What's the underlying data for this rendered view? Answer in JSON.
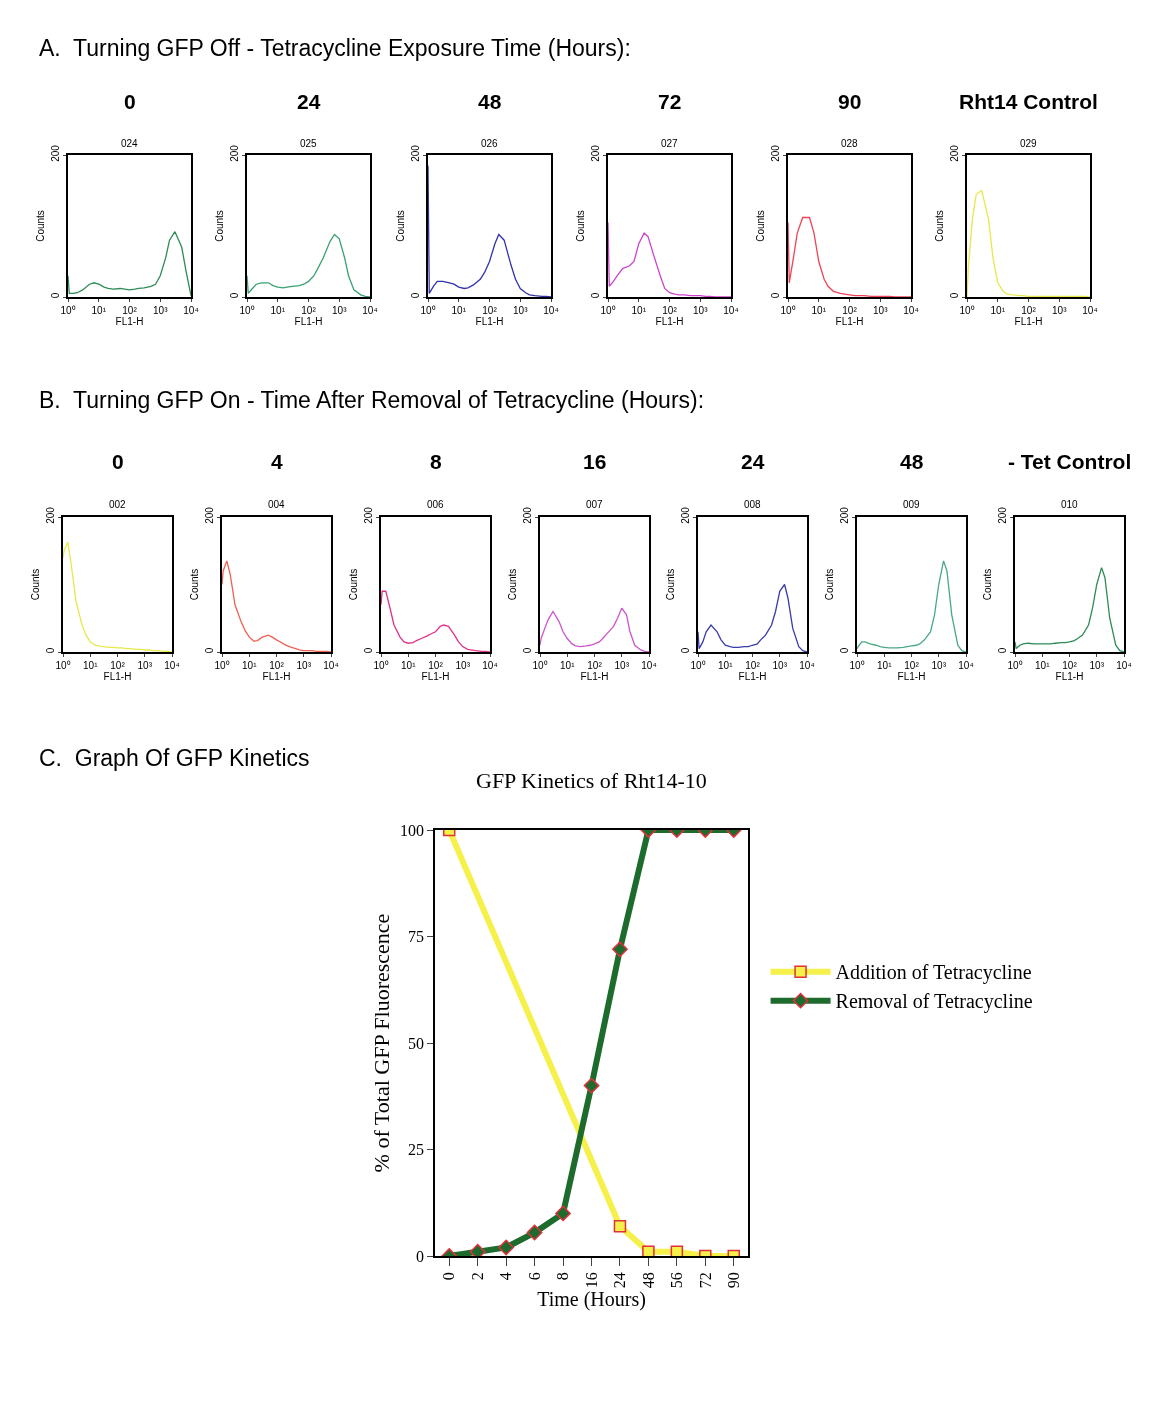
{
  "chart_data": [
    {
      "type": "line",
      "title": "0",
      "subtitle": "024",
      "xlabel": "FL1-H",
      "ylabel": "Counts",
      "log": "x",
      "annotations": [
        "A.  Turning GFP Off - Tetracycline Exposure Time (Hours):"
      ],
      "xlim": [
        1,
        10000
      ],
      "ylim": [
        0,
        200
      ],
      "xticks": [
        {
          "value": 1,
          "label": "10⁰"
        },
        {
          "value": 10,
          "label": "10¹"
        },
        {
          "value": 100,
          "label": "10²"
        },
        {
          "value": 1000,
          "label": "10³"
        },
        {
          "value": 10000,
          "label": "10⁴"
        }
      ],
      "yticks": [
        0,
        200
      ],
      "x": [
        1,
        1.1,
        1.5,
        2,
        3,
        5,
        7,
        10,
        15,
        20,
        30,
        50,
        70,
        100,
        150,
        200,
        300,
        500,
        700,
        1000,
        1500,
        2000,
        3000,
        5000,
        7000,
        10000
      ],
      "series": [
        {
          "color": "#2e8b57",
          "values": [
            30,
            5,
            5,
            6,
            10,
            18,
            20,
            18,
            14,
            12,
            11,
            12,
            11,
            10,
            11,
            12,
            13,
            15,
            18,
            30,
            55,
            80,
            92,
            70,
            35,
            2
          ]
        }
      ]
    },
    {
      "type": "line",
      "title": "24",
      "subtitle": "025",
      "xlabel": "FL1-H",
      "ylabel": "Counts",
      "log": "x",
      "xlim": [
        1,
        10000
      ],
      "ylim": [
        0,
        200
      ],
      "xticks": [
        {
          "value": 1,
          "label": "10⁰"
        },
        {
          "value": 10,
          "label": "10¹"
        },
        {
          "value": 100,
          "label": "10²"
        },
        {
          "value": 1000,
          "label": "10³"
        },
        {
          "value": 10000,
          "label": "10⁴"
        }
      ],
      "yticks": [
        0,
        200
      ],
      "x": [
        1,
        1.1,
        1.5,
        2,
        3,
        5,
        7,
        10,
        15,
        20,
        30,
        50,
        70,
        100,
        150,
        200,
        300,
        500,
        700,
        1000,
        1500,
        2000,
        3000,
        5000,
        7000,
        10000
      ],
      "series": [
        {
          "color": "#3aa070",
          "values": [
            30,
            5,
            12,
            18,
            20,
            20,
            16,
            14,
            13,
            14,
            15,
            16,
            18,
            22,
            30,
            40,
            55,
            78,
            88,
            82,
            55,
            30,
            10,
            3,
            1,
            0
          ]
        }
      ]
    },
    {
      "type": "line",
      "title": "48",
      "subtitle": "026",
      "xlabel": "FL1-H",
      "ylabel": "Counts",
      "log": "x",
      "xlim": [
        1,
        10000
      ],
      "ylim": [
        0,
        200
      ],
      "xticks": [
        {
          "value": 1,
          "label": "10⁰"
        },
        {
          "value": 10,
          "label": "10¹"
        },
        {
          "value": 100,
          "label": "10²"
        },
        {
          "value": 1000,
          "label": "10³"
        },
        {
          "value": 10000,
          "label": "10⁴"
        }
      ],
      "yticks": [
        0,
        200
      ],
      "x": [
        1,
        1.1,
        1.5,
        2,
        3,
        5,
        7,
        10,
        15,
        20,
        30,
        50,
        70,
        100,
        150,
        200,
        300,
        500,
        700,
        1000,
        1500,
        2000,
        3000,
        5000,
        7000,
        10000
      ],
      "series": [
        {
          "color": "#3333aa",
          "values": [
            185,
            5,
            15,
            22,
            22,
            20,
            18,
            14,
            12,
            13,
            17,
            25,
            35,
            50,
            75,
            88,
            80,
            45,
            25,
            12,
            6,
            3,
            2,
            1,
            1,
            0
          ]
        }
      ]
    },
    {
      "type": "line",
      "title": "72",
      "subtitle": "027",
      "xlabel": "FL1-H",
      "ylabel": "Counts",
      "log": "x",
      "xlim": [
        1,
        10000
      ],
      "ylim": [
        0,
        200
      ],
      "xticks": [
        {
          "value": 1,
          "label": "10⁰"
        },
        {
          "value": 10,
          "label": "10¹"
        },
        {
          "value": 100,
          "label": "10²"
        },
        {
          "value": 1000,
          "label": "10³"
        },
        {
          "value": 10000,
          "label": "10⁴"
        }
      ],
      "yticks": [
        0,
        200
      ],
      "x": [
        1,
        1.1,
        1.5,
        2,
        3,
        5,
        7,
        10,
        15,
        20,
        30,
        50,
        70,
        100,
        150,
        200,
        300,
        500,
        700,
        1000,
        1500,
        2000,
        3000,
        5000,
        7000,
        10000
      ],
      "series": [
        {
          "color": "#cc44cc",
          "values": [
            105,
            15,
            22,
            30,
            40,
            44,
            50,
            75,
            90,
            85,
            60,
            30,
            12,
            6,
            4,
            3,
            3,
            2,
            2,
            2,
            1,
            1,
            0,
            0,
            0,
            0
          ]
        }
      ]
    },
    {
      "type": "line",
      "title": "90",
      "subtitle": "028",
      "xlabel": "FL1-H",
      "ylabel": "Counts",
      "log": "x",
      "xlim": [
        1,
        10000
      ],
      "ylim": [
        0,
        200
      ],
      "xticks": [
        {
          "value": 1,
          "label": "10⁰"
        },
        {
          "value": 10,
          "label": "10¹"
        },
        {
          "value": 100,
          "label": "10²"
        },
        {
          "value": 1000,
          "label": "10³"
        },
        {
          "value": 10000,
          "label": "10⁴"
        }
      ],
      "yticks": [
        0,
        200
      ],
      "x": [
        1,
        1.1,
        1.5,
        2,
        3,
        5,
        7,
        10,
        15,
        20,
        30,
        50,
        70,
        100,
        150,
        200,
        300,
        500,
        700,
        1000,
        1500,
        2000,
        3000,
        5000,
        7000,
        10000
      ],
      "series": [
        {
          "color": "#ee4455",
          "values": [
            105,
            20,
            55,
            90,
            112,
            112,
            90,
            50,
            25,
            15,
            8,
            5,
            4,
            3,
            2,
            2,
            2,
            1,
            1,
            1,
            1,
            1,
            0,
            0,
            0,
            0
          ]
        }
      ]
    },
    {
      "type": "line",
      "title": "Rht14 Control",
      "subtitle": "029",
      "xlabel": "FL1-H",
      "ylabel": "Counts",
      "log": "x",
      "xlim": [
        1,
        10000
      ],
      "ylim": [
        0,
        200
      ],
      "xticks": [
        {
          "value": 1,
          "label": "10⁰"
        },
        {
          "value": 10,
          "label": "10¹"
        },
        {
          "value": 100,
          "label": "10²"
        },
        {
          "value": 1000,
          "label": "10³"
        },
        {
          "value": 10000,
          "label": "10⁴"
        }
      ],
      "yticks": [
        0,
        200
      ],
      "x": [
        1,
        1.1,
        1.5,
        2,
        3,
        5,
        7,
        10,
        15,
        20,
        30,
        50,
        70,
        100,
        150,
        200,
        300,
        500,
        700,
        1000,
        1500,
        2000,
        3000,
        5000,
        7000,
        10000
      ],
      "series": [
        {
          "color": "#e8e84a",
          "values": [
            0,
            40,
            110,
            145,
            150,
            110,
            55,
            20,
            8,
            4,
            3,
            2,
            2,
            1,
            1,
            1,
            1,
            1,
            1,
            1,
            1,
            1,
            1,
            1,
            1,
            0
          ]
        }
      ]
    },
    {
      "type": "line",
      "title": "0",
      "subtitle": "002",
      "xlabel": "FL1-H",
      "ylabel": "Counts",
      "log": "x",
      "annotations": [
        "B.  Turning GFP On - Time After Removal of Tetracycline (Hours):"
      ],
      "xlim": [
        1,
        10000
      ],
      "ylim": [
        0,
        200
      ],
      "xticks": [
        {
          "value": 1,
          "label": "10⁰"
        },
        {
          "value": 10,
          "label": "10¹"
        },
        {
          "value": 100,
          "label": "10²"
        },
        {
          "value": 1000,
          "label": "10³"
        },
        {
          "value": 10000,
          "label": "10⁴"
        }
      ],
      "yticks": [
        0,
        200
      ],
      "x": [
        1,
        1.1,
        1.5,
        2,
        3,
        5,
        7,
        10,
        15,
        20,
        30,
        50,
        70,
        100,
        150,
        200,
        300,
        500,
        700,
        1000,
        1500,
        2000,
        3000,
        5000,
        7000,
        10000
      ],
      "series": [
        {
          "color": "#e8e84a",
          "values": [
            140,
            150,
            163,
            130,
            75,
            40,
            25,
            15,
            10,
            9,
            8,
            7,
            7,
            6,
            6,
            5,
            5,
            4,
            4,
            3,
            3,
            2,
            2,
            1,
            1,
            0
          ]
        }
      ]
    },
    {
      "type": "line",
      "title": "4",
      "subtitle": "004",
      "xlabel": "FL1-H",
      "ylabel": "Counts",
      "log": "x",
      "xlim": [
        1,
        10000
      ],
      "ylim": [
        0,
        200
      ],
      "xticks": [
        {
          "value": 1,
          "label": "10⁰"
        },
        {
          "value": 10,
          "label": "10¹"
        },
        {
          "value": 100,
          "label": "10²"
        },
        {
          "value": 1000,
          "label": "10³"
        },
        {
          "value": 10000,
          "label": "10⁴"
        }
      ],
      "yticks": [
        0,
        200
      ],
      "x": [
        1,
        1.1,
        1.5,
        2,
        3,
        5,
        7,
        10,
        15,
        20,
        30,
        50,
        70,
        100,
        150,
        200,
        300,
        500,
        700,
        1000,
        1500,
        2000,
        3000,
        5000,
        7000,
        10000
      ],
      "series": [
        {
          "color": "#f06050",
          "values": [
            100,
            120,
            135,
            115,
            70,
            45,
            32,
            22,
            16,
            17,
            22,
            25,
            22,
            18,
            14,
            11,
            8,
            5,
            3,
            2,
            2,
            2,
            1,
            1,
            1,
            0
          ]
        }
      ]
    },
    {
      "type": "line",
      "title": "8",
      "subtitle": "006",
      "xlabel": "FL1-H",
      "ylabel": "Counts",
      "log": "x",
      "xlim": [
        1,
        10000
      ],
      "ylim": [
        0,
        200
      ],
      "xticks": [
        {
          "value": 1,
          "label": "10⁰"
        },
        {
          "value": 10,
          "label": "10¹"
        },
        {
          "value": 100,
          "label": "10²"
        },
        {
          "value": 1000,
          "label": "10³"
        },
        {
          "value": 10000,
          "label": "10⁴"
        }
      ],
      "yticks": [
        0,
        200
      ],
      "x": [
        1,
        1.1,
        1.5,
        2,
        3,
        5,
        7,
        10,
        15,
        20,
        30,
        50,
        70,
        100,
        150,
        200,
        300,
        500,
        700,
        1000,
        1500,
        2000,
        3000,
        5000,
        7000,
        10000
      ],
      "series": [
        {
          "color": "#e0308a",
          "values": [
            70,
            90,
            90,
            70,
            40,
            22,
            15,
            13,
            14,
            17,
            20,
            24,
            27,
            30,
            38,
            40,
            38,
            25,
            15,
            8,
            4,
            3,
            2,
            1,
            1,
            0
          ]
        }
      ]
    },
    {
      "type": "line",
      "title": "16",
      "subtitle": "007",
      "xlabel": "FL1-H",
      "ylabel": "Counts",
      "log": "x",
      "xlim": [
        1,
        10000
      ],
      "ylim": [
        0,
        200
      ],
      "xticks": [
        {
          "value": 1,
          "label": "10⁰"
        },
        {
          "value": 10,
          "label": "10¹"
        },
        {
          "value": 100,
          "label": "10²"
        },
        {
          "value": 1000,
          "label": "10³"
        },
        {
          "value": 10000,
          "label": "10⁴"
        }
      ],
      "yticks": [
        0,
        200
      ],
      "x": [
        1,
        1.1,
        1.5,
        2,
        3,
        5,
        7,
        10,
        15,
        20,
        30,
        50,
        70,
        100,
        150,
        200,
        300,
        500,
        700,
        1000,
        1500,
        2000,
        3000,
        5000,
        7000,
        10000
      ],
      "series": [
        {
          "color": "#cc55cc",
          "values": [
            10,
            20,
            35,
            48,
            60,
            45,
            30,
            20,
            12,
            9,
            8,
            9,
            10,
            12,
            15,
            20,
            28,
            38,
            50,
            65,
            55,
            30,
            10,
            3,
            1,
            0
          ]
        }
      ]
    },
    {
      "type": "line",
      "title": "24",
      "subtitle": "008",
      "xlabel": "FL1-H",
      "ylabel": "Counts",
      "log": "x",
      "xlim": [
        1,
        10000
      ],
      "ylim": [
        0,
        200
      ],
      "xticks": [
        {
          "value": 1,
          "label": "10⁰"
        },
        {
          "value": 10,
          "label": "10¹"
        },
        {
          "value": 100,
          "label": "10²"
        },
        {
          "value": 1000,
          "label": "10³"
        },
        {
          "value": 10000,
          "label": "10⁴"
        }
      ],
      "yticks": [
        0,
        200
      ],
      "x": [
        1,
        1.1,
        1.5,
        2,
        3,
        5,
        7,
        10,
        15,
        20,
        30,
        50,
        70,
        100,
        150,
        200,
        300,
        500,
        700,
        1000,
        1500,
        2000,
        3000,
        5000,
        7000,
        10000
      ],
      "series": [
        {
          "color": "#3a3aaa",
          "values": [
            30,
            5,
            15,
            30,
            40,
            30,
            18,
            10,
            8,
            7,
            7,
            8,
            8,
            10,
            12,
            18,
            25,
            40,
            60,
            90,
            100,
            80,
            35,
            8,
            2,
            0
          ]
        }
      ]
    },
    {
      "type": "line",
      "title": "48",
      "subtitle": "009",
      "xlabel": "FL1-H",
      "ylabel": "Counts",
      "log": "x",
      "xlim": [
        1,
        10000
      ],
      "ylim": [
        0,
        200
      ],
      "xticks": [
        {
          "value": 1,
          "label": "10⁰"
        },
        {
          "value": 10,
          "label": "10¹"
        },
        {
          "value": 100,
          "label": "10²"
        },
        {
          "value": 1000,
          "label": "10³"
        },
        {
          "value": 10000,
          "label": "10⁴"
        }
      ],
      "yticks": [
        0,
        200
      ],
      "x": [
        1,
        1.1,
        1.5,
        2,
        3,
        5,
        7,
        10,
        15,
        20,
        30,
        50,
        70,
        100,
        150,
        200,
        300,
        500,
        700,
        1000,
        1500,
        2000,
        3000,
        5000,
        7000,
        10000
      ],
      "series": [
        {
          "color": "#4aa882",
          "values": [
            5,
            8,
            15,
            15,
            12,
            10,
            8,
            7,
            6,
            6,
            6,
            7,
            8,
            9,
            10,
            12,
            18,
            30,
            55,
            100,
            135,
            120,
            55,
            10,
            2,
            0
          ]
        }
      ]
    },
    {
      "type": "line",
      "title": "- Tet Control",
      "subtitle": "010",
      "xlabel": "FL1-H",
      "ylabel": "Counts",
      "log": "x",
      "xlim": [
        1,
        10000
      ],
      "ylim": [
        0,
        200
      ],
      "xticks": [
        {
          "value": 1,
          "label": "10⁰"
        },
        {
          "value": 10,
          "label": "10¹"
        },
        {
          "value": 100,
          "label": "10²"
        },
        {
          "value": 1000,
          "label": "10³"
        },
        {
          "value": 10000,
          "label": "10⁴"
        }
      ],
      "yticks": [
        0,
        200
      ],
      "x": [
        1,
        1.1,
        1.5,
        2,
        3,
        5,
        7,
        10,
        15,
        20,
        30,
        50,
        70,
        100,
        150,
        200,
        300,
        500,
        700,
        1000,
        1500,
        2000,
        3000,
        5000,
        7000,
        10000
      ],
      "series": [
        {
          "color": "#2e8b57",
          "values": [
            15,
            5,
            10,
            12,
            13,
            12,
            12,
            12,
            12,
            12,
            13,
            14,
            14,
            15,
            17,
            20,
            25,
            40,
            65,
            100,
            125,
            110,
            50,
            10,
            2,
            0
          ]
        }
      ]
    },
    {
      "type": "line",
      "title": "GFP Kinetics of Rht14-10",
      "xlabel": "Time (Hours)",
      "ylabel": "% of Total GFP Fluorescence",
      "annotations": [
        "C.  Graph Of GFP Kinetics"
      ],
      "categories": [
        "0",
        "2",
        "4",
        "6",
        "8",
        "16",
        "24",
        "48",
        "56",
        "72",
        "90"
      ],
      "ylim": [
        0,
        100
      ],
      "yticks": [
        0,
        25,
        50,
        75,
        100
      ],
      "legend": "right",
      "series": [
        {
          "name": "Addition of Tetracycline",
          "color": "#f5f04a",
          "marker": "square",
          "values": [
            100,
            null,
            null,
            null,
            null,
            null,
            7,
            1,
            1,
            0,
            0
          ]
        },
        {
          "name": "Removal of Tetracycline",
          "color": "#1e6b2e",
          "marker": "diamond",
          "values": [
            0,
            1,
            2,
            5.5,
            10,
            40,
            72,
            100,
            100,
            100,
            100
          ]
        }
      ]
    }
  ]
}
